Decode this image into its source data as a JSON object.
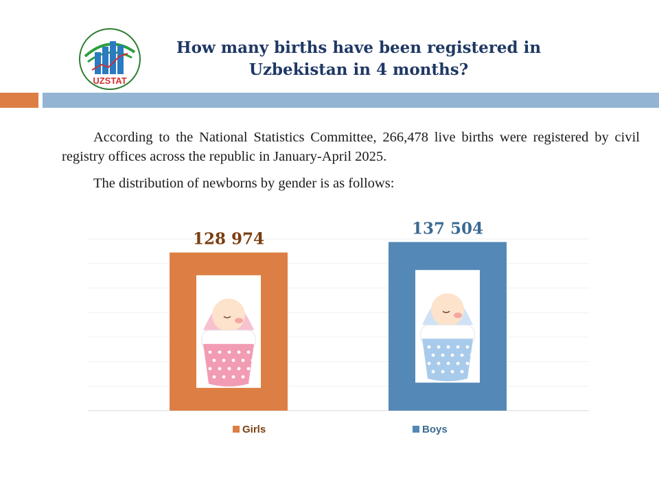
{
  "header": {
    "logo_text": "UZSTAT",
    "title": "How many births have been registered in Uzbekistan in 4 months?"
  },
  "body": {
    "paragraph_1": "According to the National Statistics Committee, 266,478 live births were registered by civil registry offices across the republic in January-April 2025.",
    "paragraph_2": "The distribution of newborns by gender is as follows:"
  },
  "colors": {
    "title": "#1f3864",
    "girls": "#dd7f44",
    "boys": "#5488b6",
    "girls_label": "#7a3e10",
    "boys_label": "#3b6a92",
    "accent_orange": "#dd7f44",
    "accent_blue": "#93b4d2"
  },
  "chart_data": {
    "type": "bar",
    "categories": [
      "Girls",
      "Boys"
    ],
    "values": [
      128974,
      137504
    ],
    "data_labels": [
      "128 974",
      "137 504"
    ],
    "ylim": [
      0,
      140000
    ],
    "grid": true,
    "legend": "bottom",
    "icons": [
      "baby-girl-swaddled-icon",
      "baby-boy-swaddled-icon"
    ]
  }
}
